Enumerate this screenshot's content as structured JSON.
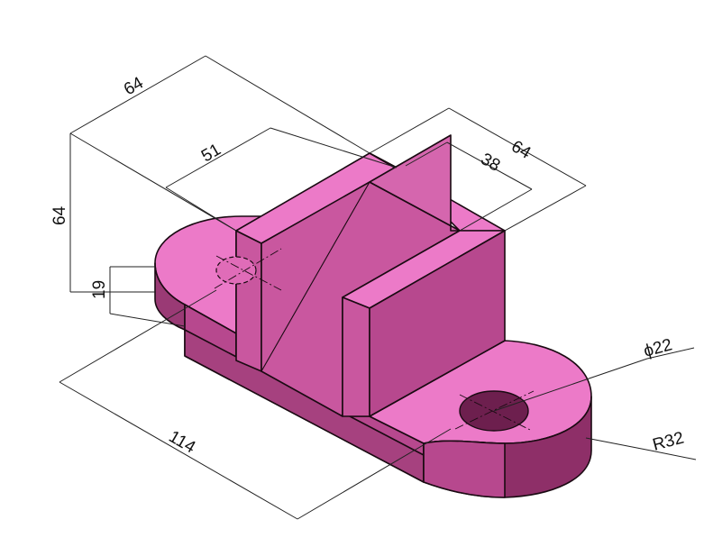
{
  "colors": {
    "top_face": "#ec7ac8",
    "front_face": "#b7488e",
    "side_face": "#c9579f",
    "dark_face": "#8e2f68",
    "hole": "#6d1f4e",
    "edge": "#1a0a12"
  },
  "dimensions": {
    "top_length": "64",
    "slot_width": "51",
    "depth": "64",
    "slot_depth": "38",
    "overall_height": "64",
    "base_height": "19",
    "overall_length": "114",
    "hole_diameter": "ϕ22",
    "end_radius": "R32"
  }
}
